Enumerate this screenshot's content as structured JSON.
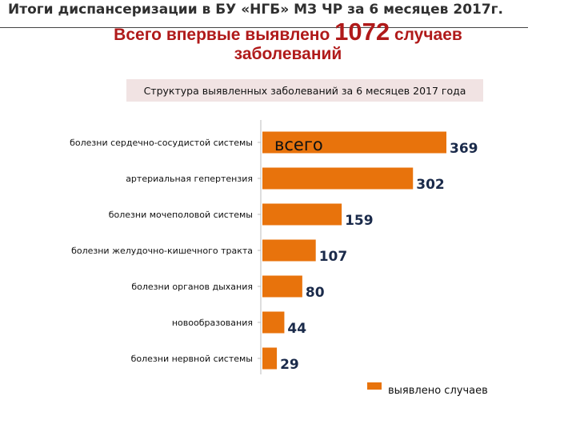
{
  "header": {
    "title": "Итоги диспансеризации в БУ «НГБ» МЗ ЧР за 6 месяцев 2017г.",
    "headline_prefix": "Всего впервые выявлено",
    "headline_number": "1072",
    "headline_suffix": "случаев",
    "headline_line2": "заболеваний"
  },
  "colors": {
    "bar": "#e8730c",
    "headline": "#b01a1a",
    "value_text": "#1a2a4a"
  },
  "chart_data": {
    "type": "bar",
    "orientation": "horizontal",
    "title": "Структура выявленных  заболеваний за 6 месяцев 2017 года",
    "categories": [
      "болезни сердечно-сосудистой системы",
      "артериальная гепертензия",
      "болезни мочеполовой системы",
      "болезни желудочно-кишечного тракта",
      "болезни органов дыхания",
      "новообразования",
      "болезни нервной системы"
    ],
    "series": [
      {
        "name": "выявлено случаев",
        "values": [
          369,
          302,
          159,
          107,
          80,
          44,
          29
        ]
      }
    ],
    "annotation": "всего",
    "xlim": [
      0,
      400
    ],
    "grid": false,
    "legend_position": "bottom-right"
  }
}
